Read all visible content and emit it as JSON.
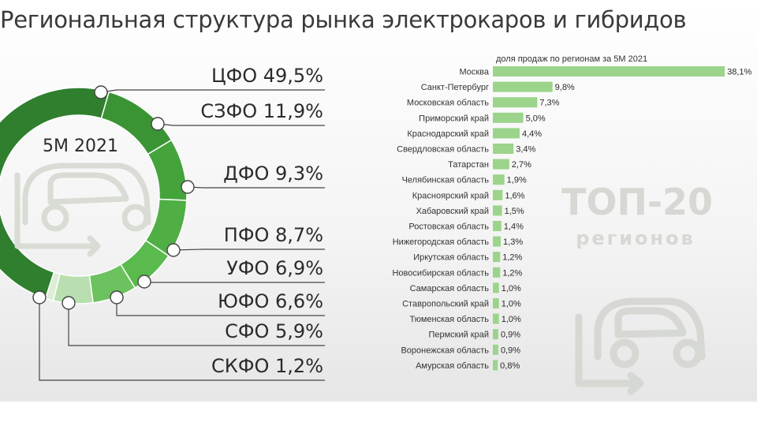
{
  "title": "Региональная структура рынка электрокаров и гибридов",
  "colors": {
    "donut": [
      "#2f7f2e",
      "#3b9434",
      "#45a33c",
      "#4fae44",
      "#5aba4d",
      "#6cc25e",
      "#b9dfb0",
      "#dcefd6"
    ],
    "bar": "#9bd48a",
    "watermark": "#d6d8d3"
  },
  "icons": [
    "car-icon"
  ],
  "chart_data": [
    {
      "type": "pie",
      "title": "5M 2021",
      "categories": [
        "ЦФО",
        "СЗФО",
        "ДФО",
        "ПФО",
        "УФО",
        "ЮФО",
        "СФО",
        "СКФО"
      ],
      "values": [
        49.5,
        11.9,
        9.3,
        8.7,
        6.9,
        6.6,
        5.9,
        1.2
      ],
      "labels": [
        "ЦФО 49,5%",
        "СЗФО 11,9%",
        "ДФО 9,3%",
        "ПФО 8,7%",
        "УФО 6,9%",
        "ЮФО 6,6%",
        "СФО 5,9%",
        "СКФО 1,2%"
      ],
      "style": "donut"
    },
    {
      "type": "bar",
      "orientation": "horizontal",
      "title": "доля продаж по регионам за 5М 2021",
      "categories": [
        "Москва",
        "Санкт-Петербург",
        "Московская область",
        "Приморский край",
        "Краснодарский край",
        "Свердловская область",
        "Татарстан",
        "Челябинская область",
        "Красноярский край",
        "Хабаровский край",
        "Ростовская область",
        "Нижегородская область",
        "Иркутская область",
        "Новосибирская область",
        "Самарская область",
        "Ставропольский край",
        "Тюменская область",
        "Пермский край",
        "Воронежская область",
        "Амурская область"
      ],
      "values": [
        38.1,
        9.8,
        7.3,
        5.0,
        4.4,
        3.4,
        2.7,
        1.9,
        1.6,
        1.5,
        1.4,
        1.3,
        1.2,
        1.2,
        1.0,
        1.0,
        1.0,
        0.9,
        0.9,
        0.8
      ],
      "value_labels": [
        "38,1%",
        "9,8%",
        "7,3%",
        "5,0%",
        "4,4%",
        "3,4%",
        "2,7%",
        "1,9%",
        "1,6%",
        "1,5%",
        "1,4%",
        "1,3%",
        "1,2%",
        "1,2%",
        "1,0%",
        "1,0%",
        "1,0%",
        "0,9%",
        "0,9%",
        "0,8%"
      ],
      "watermark": [
        "ТОП-20",
        "регионов"
      ]
    }
  ]
}
